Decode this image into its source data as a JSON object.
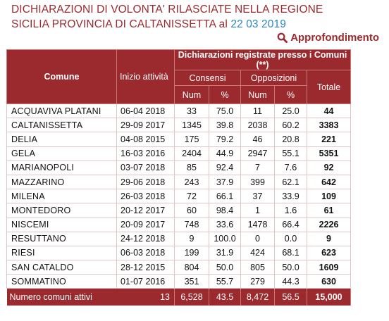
{
  "title": {
    "line1": "DICHIARAZIONI DI VOLONTA' RILASCIATE NELLA REGIONE",
    "line2": "SICILIA PROVINCIA DI CALTANISSETTA",
    "date_prefix": "al",
    "date": "22 03 2019"
  },
  "link": {
    "label": "Approfondimento",
    "icon": "search-icon"
  },
  "colors": {
    "accent": "#9b2a2f",
    "date": "#2a86c9"
  },
  "table": {
    "headers": {
      "comune": "Comune",
      "inizio": "Inizio attività",
      "group": "Dichiarazioni registrate presso i Comuni (**)",
      "consensi": "Consensi",
      "opposizioni": "Opposizioni",
      "totale": "Totale",
      "num": "Num",
      "pct": "%"
    },
    "rows": [
      {
        "comune": "ACQUAVIVA PLATANI",
        "inizio": "06-04 2018",
        "c_num": "33",
        "c_pct": "75.0",
        "o_num": "11",
        "o_pct": "25.0",
        "tot": "44"
      },
      {
        "comune": "CALTANISSETTA",
        "inizio": "29-09 2017",
        "c_num": "1345",
        "c_pct": "39.8",
        "o_num": "2038",
        "o_pct": "60.2",
        "tot": "3383"
      },
      {
        "comune": "DELIA",
        "inizio": "04-08 2015",
        "c_num": "175",
        "c_pct": "79.2",
        "o_num": "46",
        "o_pct": "20.8",
        "tot": "221"
      },
      {
        "comune": "GELA",
        "inizio": "16-03 2016",
        "c_num": "2404",
        "c_pct": "44.9",
        "o_num": "2947",
        "o_pct": "55.1",
        "tot": "5351"
      },
      {
        "comune": "MARIANOPOLI",
        "inizio": "03-07 2018",
        "c_num": "85",
        "c_pct": "92.4",
        "o_num": "7",
        "o_pct": "7.6",
        "tot": "92"
      },
      {
        "comune": "MAZZARINO",
        "inizio": "29-06 2018",
        "c_num": "243",
        "c_pct": "37.9",
        "o_num": "399",
        "o_pct": "62.1",
        "tot": "642"
      },
      {
        "comune": "MILENA",
        "inizio": "26-03 2018",
        "c_num": "72",
        "c_pct": "66.1",
        "o_num": "37",
        "o_pct": "33.9",
        "tot": "109"
      },
      {
        "comune": "MONTEDORO",
        "inizio": "20-12 2017",
        "c_num": "60",
        "c_pct": "98.4",
        "o_num": "1",
        "o_pct": "1.6",
        "tot": "61"
      },
      {
        "comune": "NISCEMI",
        "inizio": "20-09 2017",
        "c_num": "748",
        "c_pct": "33.6",
        "o_num": "1478",
        "o_pct": "66.4",
        "tot": "2226"
      },
      {
        "comune": "RESUTTANO",
        "inizio": "24-12 2018",
        "c_num": "9",
        "c_pct": "100.0",
        "o_num": "0",
        "o_pct": "0.0",
        "tot": "9"
      },
      {
        "comune": "RIESI",
        "inizio": "06-03 2018",
        "c_num": "199",
        "c_pct": "31.9",
        "o_num": "424",
        "o_pct": "68.1",
        "tot": "623"
      },
      {
        "comune": "SAN CATALDO",
        "inizio": "28-12 2015",
        "c_num": "804",
        "c_pct": "50.0",
        "o_num": "805",
        "o_pct": "50.0",
        "tot": "1609"
      },
      {
        "comune": "SOMMATINO",
        "inizio": "01-07 2016",
        "c_num": "351",
        "c_pct": "55.7",
        "o_num": "279",
        "o_pct": "44.3",
        "tot": "630"
      }
    ],
    "footer": {
      "label": "Numero comuni attivi",
      "count": "13",
      "c_num": "6,528",
      "c_pct": "43.5",
      "o_num": "8,472",
      "o_pct": "56.5",
      "tot": "15,000"
    }
  }
}
